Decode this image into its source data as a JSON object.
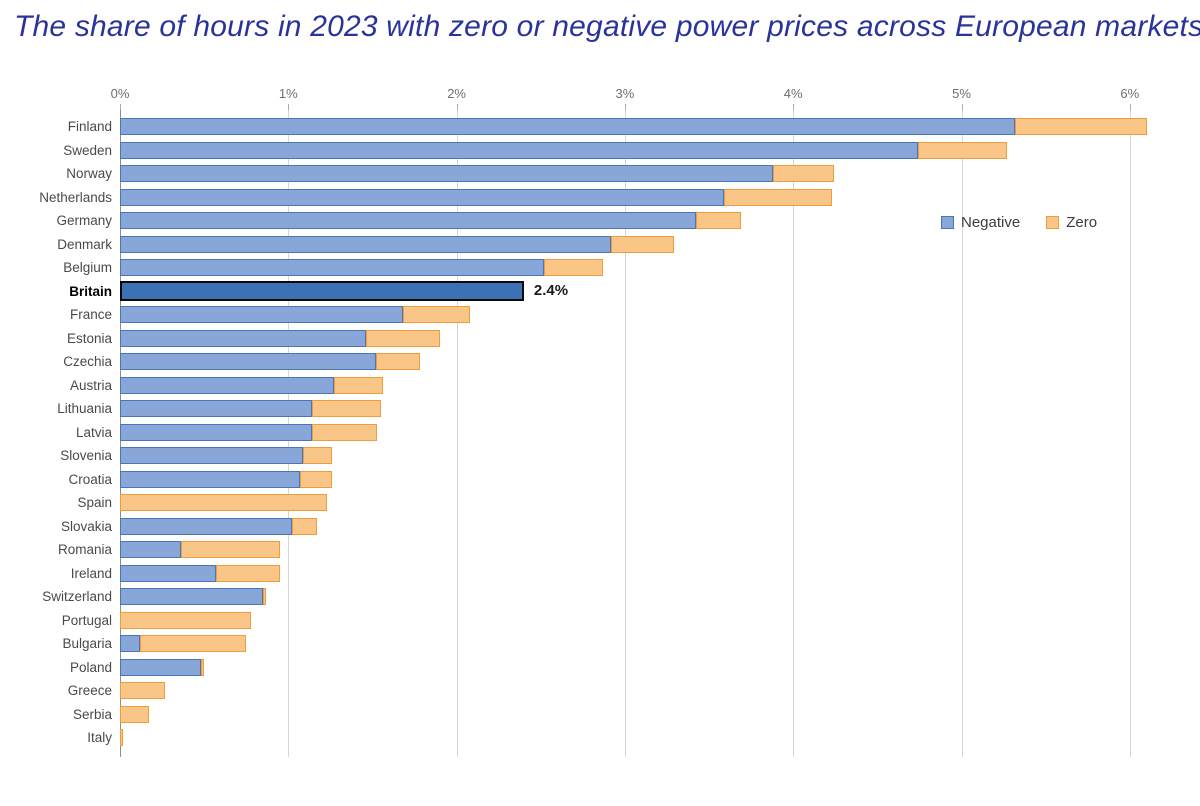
{
  "title": "The share of hours in 2023 with zero or negative power prices across European markets",
  "legend": {
    "negative_label": "Negative",
    "zero_label": "Zero"
  },
  "colors": {
    "negative_fill": "#88A6D7",
    "negative_border": "#4876B9",
    "zero_fill": "#FAC687",
    "zero_border": "#EE9D3D",
    "highlight_fill": "#3D71B5",
    "highlight_border": "#0A0A0A",
    "gridline": "#D6D6D6",
    "axis_line": "#8C8C8C",
    "tick_text": "#6E6E6E",
    "category_text": "#4A4A4A",
    "title_text": "#2A339B"
  },
  "chart_data": {
    "type": "bar",
    "orientation": "horizontal",
    "stacked": true,
    "title": "The share of hours in 2023 with zero or negative power prices across European markets",
    "xlabel": "",
    "ylabel": "",
    "x_tick_labels": [
      "0%",
      "1%",
      "2%",
      "3%",
      "4%",
      "5%",
      "6%"
    ],
    "x_tick_values": [
      0,
      1,
      2,
      3,
      4,
      5,
      6
    ],
    "xlim": [
      0,
      6.18
    ],
    "grid": true,
    "legend_position": "right",
    "categories": [
      "Finland",
      "Sweden",
      "Norway",
      "Netherlands",
      "Germany",
      "Denmark",
      "Belgium",
      "Britain",
      "France",
      "Estonia",
      "Czechia",
      "Austria",
      "Lithuania",
      "Latvia",
      "Slovenia",
      "Croatia",
      "Spain",
      "Slovakia",
      "Romania",
      "Ireland",
      "Switzerland",
      "Portugal",
      "Bulgaria",
      "Poland",
      "Greece",
      "Serbia",
      "Italy"
    ],
    "series": [
      {
        "name": "Negative",
        "values": [
          5.32,
          4.74,
          3.88,
          3.59,
          3.42,
          2.92,
          2.52,
          2.4,
          1.68,
          1.46,
          1.52,
          1.27,
          1.14,
          1.14,
          1.09,
          1.07,
          0.0,
          1.02,
          0.36,
          0.57,
          0.85,
          0.0,
          0.12,
          0.48,
          0.0,
          0.0,
          0.0
        ]
      },
      {
        "name": "Zero",
        "values": [
          0.78,
          0.53,
          0.36,
          0.64,
          0.27,
          0.37,
          0.35,
          0.0,
          0.4,
          0.44,
          0.26,
          0.29,
          0.41,
          0.39,
          0.17,
          0.19,
          1.23,
          0.15,
          0.59,
          0.38,
          0.02,
          0.78,
          0.63,
          0.02,
          0.27,
          0.17,
          0.02
        ]
      }
    ],
    "highlight": {
      "category": "Britain",
      "value_label": "2.4%"
    }
  }
}
